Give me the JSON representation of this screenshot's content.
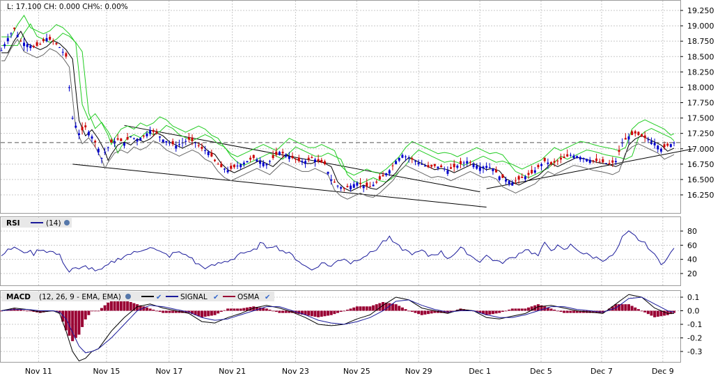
{
  "status_line": "L: 17.100 CH: 0.000 CH%: 0.00%",
  "x_labels": [
    "Nov 11",
    "Nov 15",
    "Nov 17",
    "Nov 21",
    "Nov 23",
    "Nov 25",
    "Nov 29",
    "Dec 1",
    "Dec 5",
    "Dec 7",
    "Dec 9"
  ],
  "price_axis": [
    "19.250",
    "19.000",
    "18.750",
    "18.500",
    "18.250",
    "18.000",
    "17.750",
    "17.500",
    "17.250",
    "17.000",
    "16.750",
    "16.500",
    "16.250"
  ],
  "rsi_axis": [
    "80",
    "60",
    "40",
    "20"
  ],
  "macd_axis": [
    "0.1",
    "0.0",
    "-0.1",
    "-0.2",
    "-0.3"
  ],
  "rsi_legend": {
    "name": "RSI",
    "period": "(14)"
  },
  "macd_legend": {
    "name": "MACD",
    "params": "(12, 26, 9 - EMA, EMA)",
    "signal": "SIGNAL",
    "osma": "OSMA"
  },
  "colors": {
    "up_candle": "#0000cc",
    "down_candle": "#cc0000",
    "ma_black": "#000000",
    "band_green": "#22cc22",
    "rsi_line": "#1a1a9a",
    "macd_line": "#000000",
    "signal_line": "#1a1a9a",
    "osma_bars": "#990033"
  },
  "chart_data": [
    {
      "type": "candlestick",
      "name": "price",
      "last": 17.1,
      "ylim": [
        16.0,
        19.3
      ],
      "grid": true,
      "close_path": [
        [
          0,
          18.6
        ],
        [
          2,
          18.8
        ],
        [
          4,
          18.95
        ],
        [
          6,
          18.75
        ],
        [
          8,
          18.7
        ],
        [
          10,
          18.65
        ],
        [
          12,
          18.7
        ],
        [
          14,
          18.8
        ],
        [
          16,
          18.75
        ],
        [
          18,
          18.65
        ],
        [
          20,
          18.5
        ],
        [
          21,
          18.0
        ],
        [
          22,
          17.5
        ],
        [
          24,
          17.25
        ],
        [
          26,
          17.35
        ],
        [
          28,
          17.2
        ],
        [
          30,
          17.0
        ],
        [
          31,
          16.85
        ],
        [
          32,
          16.95
        ],
        [
          34,
          17.1
        ],
        [
          36,
          17.15
        ],
        [
          38,
          17.1
        ],
        [
          40,
          17.2
        ],
        [
          42,
          17.15
        ],
        [
          44,
          17.2
        ],
        [
          46,
          17.3
        ],
        [
          48,
          17.25
        ],
        [
          50,
          17.15
        ],
        [
          52,
          17.1
        ],
        [
          54,
          17.05
        ],
        [
          56,
          17.1
        ],
        [
          58,
          17.15
        ],
        [
          60,
          17.1
        ],
        [
          62,
          17.0
        ],
        [
          64,
          16.95
        ],
        [
          66,
          16.8
        ],
        [
          68,
          16.7
        ],
        [
          70,
          16.65
        ],
        [
          72,
          16.7
        ],
        [
          74,
          16.75
        ],
        [
          76,
          16.8
        ],
        [
          78,
          16.85
        ],
        [
          80,
          16.8
        ],
        [
          82,
          16.75
        ],
        [
          84,
          16.85
        ],
        [
          86,
          16.95
        ],
        [
          88,
          16.9
        ],
        [
          90,
          16.85
        ],
        [
          92,
          16.8
        ],
        [
          94,
          16.8
        ],
        [
          96,
          16.85
        ],
        [
          98,
          16.8
        ],
        [
          100,
          16.75
        ],
        [
          102,
          16.5
        ],
        [
          104,
          16.4
        ],
        [
          106,
          16.35
        ],
        [
          108,
          16.4
        ],
        [
          110,
          16.45
        ],
        [
          112,
          16.4
        ],
        [
          114,
          16.38
        ],
        [
          116,
          16.45
        ],
        [
          118,
          16.55
        ],
        [
          120,
          16.65
        ],
        [
          122,
          16.8
        ],
        [
          124,
          16.9
        ],
        [
          126,
          16.85
        ],
        [
          128,
          16.8
        ],
        [
          130,
          16.75
        ],
        [
          132,
          16.7
        ],
        [
          134,
          16.72
        ],
        [
          136,
          16.7
        ],
        [
          138,
          16.65
        ],
        [
          140,
          16.7
        ],
        [
          142,
          16.75
        ],
        [
          144,
          16.8
        ],
        [
          146,
          16.75
        ],
        [
          148,
          16.7
        ],
        [
          150,
          16.72
        ],
        [
          152,
          16.68
        ],
        [
          154,
          16.55
        ],
        [
          156,
          16.5
        ],
        [
          158,
          16.45
        ],
        [
          160,
          16.5
        ],
        [
          162,
          16.55
        ],
        [
          164,
          16.6
        ],
        [
          166,
          16.7
        ],
        [
          168,
          16.8
        ],
        [
          170,
          16.75
        ],
        [
          172,
          16.8
        ],
        [
          174,
          16.85
        ],
        [
          176,
          16.9
        ],
        [
          178,
          16.88
        ],
        [
          180,
          16.85
        ],
        [
          182,
          16.82
        ],
        [
          184,
          16.8
        ],
        [
          186,
          16.78
        ],
        [
          188,
          16.75
        ],
        [
          190,
          16.8
        ],
        [
          192,
          17.1
        ],
        [
          194,
          17.2
        ],
        [
          196,
          17.25
        ],
        [
          198,
          17.2
        ],
        [
          200,
          17.15
        ],
        [
          202,
          17.1
        ],
        [
          204,
          17.0
        ],
        [
          206,
          17.05
        ],
        [
          208,
          17.1
        ]
      ]
    },
    {
      "type": "line",
      "name": "RSI",
      "period": 14,
      "ylim": [
        5,
        90
      ],
      "grid": true,
      "path": [
        [
          0,
          48
        ],
        [
          2,
          52
        ],
        [
          4,
          58
        ],
        [
          6,
          50
        ],
        [
          8,
          52
        ],
        [
          10,
          48
        ],
        [
          12,
          55
        ],
        [
          14,
          52
        ],
        [
          16,
          50
        ],
        [
          18,
          45
        ],
        [
          20,
          30
        ],
        [
          21,
          22
        ],
        [
          22,
          28
        ],
        [
          24,
          25
        ],
        [
          26,
          30
        ],
        [
          28,
          27
        ],
        [
          30,
          23
        ],
        [
          32,
          28
        ],
        [
          34,
          35
        ],
        [
          36,
          40
        ],
        [
          38,
          45
        ],
        [
          40,
          48
        ],
        [
          42,
          50
        ],
        [
          44,
          55
        ],
        [
          46,
          58
        ],
        [
          48,
          52
        ],
        [
          50,
          48
        ],
        [
          52,
          45
        ],
        [
          54,
          50
        ],
        [
          56,
          48
        ],
        [
          58,
          45
        ],
        [
          60,
          35
        ],
        [
          62,
          30
        ],
        [
          64,
          28
        ],
        [
          66,
          32
        ],
        [
          68,
          35
        ],
        [
          70,
          38
        ],
        [
          72,
          42
        ],
        [
          74,
          50
        ],
        [
          76,
          48
        ],
        [
          78,
          52
        ],
        [
          80,
          62
        ],
        [
          82,
          58
        ],
        [
          84,
          60
        ],
        [
          86,
          55
        ],
        [
          88,
          50
        ],
        [
          90,
          45
        ],
        [
          92,
          38
        ],
        [
          94,
          30
        ],
        [
          96,
          25
        ],
        [
          98,
          32
        ],
        [
          100,
          35
        ],
        [
          102,
          30
        ],
        [
          104,
          38
        ],
        [
          106,
          42
        ],
        [
          108,
          35
        ],
        [
          110,
          40
        ],
        [
          112,
          45
        ],
        [
          114,
          48
        ],
        [
          116,
          55
        ],
        [
          118,
          65
        ],
        [
          120,
          70
        ],
        [
          122,
          60
        ],
        [
          124,
          55
        ],
        [
          126,
          50
        ],
        [
          128,
          48
        ],
        [
          130,
          52
        ],
        [
          132,
          45
        ],
        [
          134,
          48
        ],
        [
          136,
          50
        ],
        [
          138,
          42
        ],
        [
          140,
          48
        ],
        [
          142,
          55
        ],
        [
          144,
          50
        ],
        [
          146,
          42
        ],
        [
          148,
          38
        ],
        [
          150,
          45
        ],
        [
          152,
          40
        ],
        [
          154,
          35
        ],
        [
          156,
          38
        ],
        [
          158,
          42
        ],
        [
          160,
          48
        ],
        [
          162,
          55
        ],
        [
          164,
          50
        ],
        [
          166,
          45
        ],
        [
          168,
          62
        ],
        [
          170,
          55
        ],
        [
          172,
          58
        ],
        [
          174,
          52
        ],
        [
          176,
          60
        ],
        [
          178,
          55
        ],
        [
          180,
          48
        ],
        [
          182,
          45
        ],
        [
          184,
          42
        ],
        [
          186,
          40
        ],
        [
          188,
          42
        ],
        [
          190,
          50
        ],
        [
          192,
          70
        ],
        [
          194,
          78
        ],
        [
          196,
          72
        ],
        [
          198,
          65
        ],
        [
          200,
          58
        ],
        [
          202,
          45
        ],
        [
          204,
          35
        ],
        [
          206,
          42
        ],
        [
          208,
          55
        ]
      ]
    },
    {
      "type": "line",
      "name": "MACD",
      "params": [
        12,
        26,
        9
      ],
      "ylim": [
        -0.36,
        0.14
      ],
      "grid": true,
      "series": [
        {
          "name": "MACD",
          "path": [
            [
              0,
              0.0
            ],
            [
              4,
              0.02
            ],
            [
              8,
              0.01
            ],
            [
              12,
              -0.01
            ],
            [
              16,
              0.0
            ],
            [
              18,
              -0.02
            ],
            [
              20,
              -0.15
            ],
            [
              22,
              -0.3
            ],
            [
              24,
              -0.37
            ],
            [
              26,
              -0.35
            ],
            [
              28,
              -0.3
            ],
            [
              30,
              -0.28
            ],
            [
              34,
              -0.15
            ],
            [
              38,
              -0.05
            ],
            [
              42,
              0.03
            ],
            [
              46,
              0.05
            ],
            [
              50,
              0.02
            ],
            [
              54,
              0.0
            ],
            [
              58,
              -0.02
            ],
            [
              62,
              -0.08
            ],
            [
              66,
              -0.09
            ],
            [
              70,
              -0.05
            ],
            [
              74,
              -0.02
            ],
            [
              78,
              0.02
            ],
            [
              82,
              0.04
            ],
            [
              86,
              0.02
            ],
            [
              90,
              -0.01
            ],
            [
              94,
              -0.05
            ],
            [
              98,
              -0.1
            ],
            [
              102,
              -0.11
            ],
            [
              106,
              -0.1
            ],
            [
              110,
              -0.06
            ],
            [
              114,
              -0.03
            ],
            [
              118,
              0.04
            ],
            [
              122,
              0.1
            ],
            [
              126,
              0.08
            ],
            [
              130,
              0.02
            ],
            [
              134,
              0.0
            ],
            [
              138,
              -0.02
            ],
            [
              142,
              0.01
            ],
            [
              146,
              0.0
            ],
            [
              150,
              -0.05
            ],
            [
              154,
              -0.06
            ],
            [
              158,
              -0.04
            ],
            [
              162,
              -0.02
            ],
            [
              166,
              0.03
            ],
            [
              170,
              0.04
            ],
            [
              174,
              0.02
            ],
            [
              178,
              0.0
            ],
            [
              182,
              -0.01
            ],
            [
              186,
              -0.02
            ],
            [
              190,
              0.05
            ],
            [
              194,
              0.12
            ],
            [
              198,
              0.1
            ],
            [
              202,
              0.02
            ],
            [
              206,
              -0.02
            ],
            [
              208,
              -0.02
            ]
          ]
        },
        {
          "name": "SIGNAL",
          "path": [
            [
              0,
              0.0
            ],
            [
              4,
              0.01
            ],
            [
              8,
              0.01
            ],
            [
              12,
              0.0
            ],
            [
              16,
              0.0
            ],
            [
              18,
              -0.01
            ],
            [
              20,
              -0.06
            ],
            [
              22,
              -0.16
            ],
            [
              24,
              -0.26
            ],
            [
              26,
              -0.31
            ],
            [
              28,
              -0.3
            ],
            [
              30,
              -0.28
            ],
            [
              34,
              -0.2
            ],
            [
              38,
              -0.1
            ],
            [
              42,
              0.0
            ],
            [
              46,
              0.04
            ],
            [
              50,
              0.03
            ],
            [
              54,
              0.01
            ],
            [
              58,
              -0.01
            ],
            [
              62,
              -0.05
            ],
            [
              66,
              -0.07
            ],
            [
              70,
              -0.06
            ],
            [
              74,
              -0.03
            ],
            [
              78,
              0.0
            ],
            [
              82,
              0.03
            ],
            [
              86,
              0.03
            ],
            [
              90,
              0.0
            ],
            [
              94,
              -0.03
            ],
            [
              98,
              -0.07
            ],
            [
              102,
              -0.09
            ],
            [
              106,
              -0.1
            ],
            [
              110,
              -0.08
            ],
            [
              114,
              -0.05
            ],
            [
              118,
              0.0
            ],
            [
              122,
              0.07
            ],
            [
              126,
              0.08
            ],
            [
              130,
              0.04
            ],
            [
              134,
              0.01
            ],
            [
              138,
              -0.01
            ],
            [
              142,
              0.0
            ],
            [
              146,
              0.0
            ],
            [
              150,
              -0.03
            ],
            [
              154,
              -0.05
            ],
            [
              158,
              -0.05
            ],
            [
              162,
              -0.03
            ],
            [
              166,
              0.0
            ],
            [
              170,
              0.03
            ],
            [
              174,
              0.03
            ],
            [
              178,
              0.01
            ],
            [
              182,
              0.0
            ],
            [
              186,
              -0.01
            ],
            [
              190,
              0.02
            ],
            [
              194,
              0.09
            ],
            [
              198,
              0.1
            ],
            [
              202,
              0.05
            ],
            [
              206,
              0.0
            ],
            [
              208,
              -0.01
            ]
          ]
        }
      ]
    }
  ]
}
